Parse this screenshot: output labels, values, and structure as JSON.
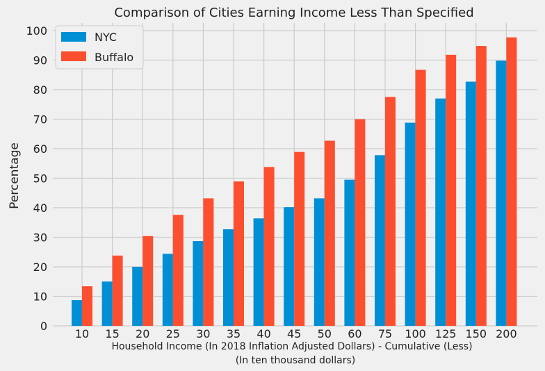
{
  "chart_data": {
    "type": "bar",
    "title": "Comparison of Cities Earning Income Less Than Specified",
    "xlabel": "Household Income (In 2018 Inflation Adjusted Dollars) - Cumulative (Less)",
    "xlabel_sub": "(In ten thousand dollars)",
    "ylabel": "Percentage",
    "categories": [
      "10",
      "15",
      "20",
      "25",
      "30",
      "35",
      "40",
      "45",
      "50",
      "60",
      "75",
      "100",
      "125",
      "150",
      "200"
    ],
    "series": [
      {
        "name": "NYC",
        "color": "#008fd5",
        "values": [
          8.7,
          15.0,
          20.0,
          24.4,
          28.7,
          32.7,
          36.4,
          40.2,
          43.2,
          49.5,
          57.8,
          68.8,
          77.0,
          82.7,
          89.8
        ]
      },
      {
        "name": "Buffalo",
        "color": "#fc4f30",
        "values": [
          13.4,
          23.8,
          30.4,
          37.6,
          43.2,
          48.9,
          53.8,
          58.9,
          62.7,
          70.0,
          77.5,
          86.7,
          91.8,
          94.8,
          97.7
        ]
      }
    ],
    "ylim": [
      0,
      100
    ],
    "yticks": [
      0,
      10,
      20,
      30,
      40,
      50,
      60,
      70,
      80,
      90,
      100
    ],
    "grid": true,
    "legend_position": "top-left"
  }
}
